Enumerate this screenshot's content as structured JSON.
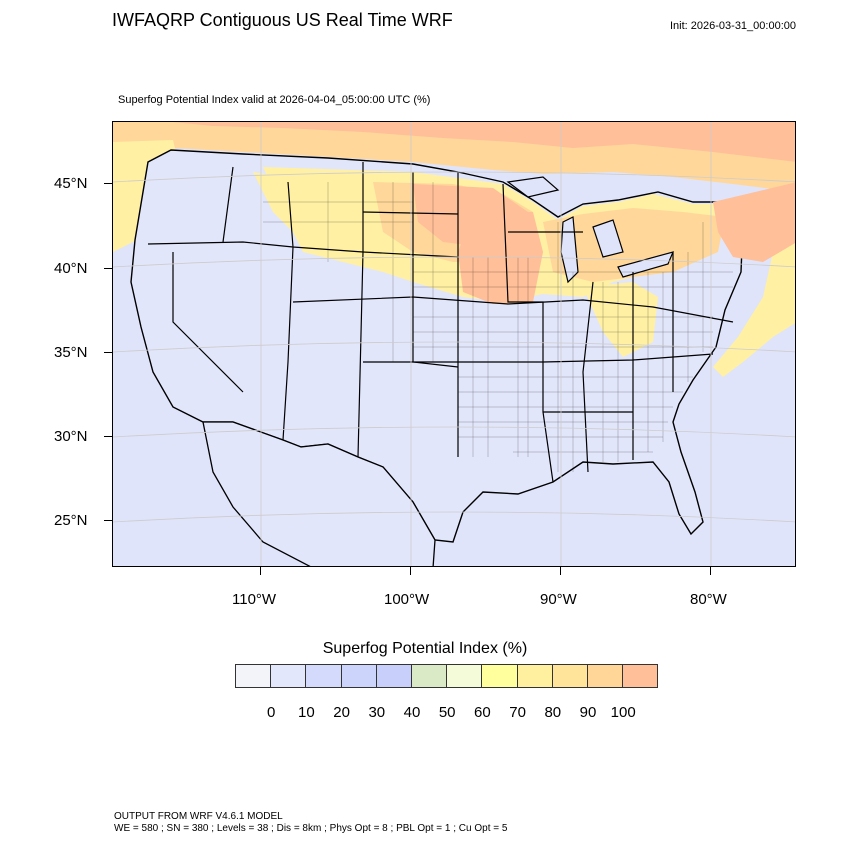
{
  "header": {
    "title": "IWFAQRP Contiguous US Real Time WRF",
    "init": "Init: 2026-03-31_00:00:00",
    "subtitle": "Superfog Potential Index valid at 2026-04-04_05:00:00 UTC   (%)"
  },
  "map": {
    "lat_labels": [
      "45°N",
      "40°N",
      "35°N",
      "30°N",
      "25°N"
    ],
    "lon_labels": [
      "110°W",
      "100°W",
      "90°W",
      "80°W"
    ],
    "land_color": "#e2e6fb",
    "ocean_color": "#dfe4fa",
    "high_color": "#ffbf99",
    "mid_color": "#ffd79a",
    "low_color": "#fff0a3"
  },
  "colorbar": {
    "title": "Superfog Potential Index  (%)",
    "colors": [
      "#f2f4f9",
      "#e3e7fb",
      "#d4dafb",
      "#cdd4fb",
      "#c8cffb",
      "#dbeac6",
      "#f4fbd9",
      "#ffff9e",
      "#fff0a0",
      "#ffe49a",
      "#ffd598",
      "#ffbf99"
    ],
    "labels": [
      "0",
      "10",
      "20",
      "30",
      "40",
      "50",
      "60",
      "70",
      "80",
      "90",
      "100"
    ]
  },
  "footer": {
    "line1": "OUTPUT FROM WRF V4.6.1 MODEL",
    "line2": "WE = 580 ; SN = 380 ; Levels = 38 ; Dis = 8km ; Phys Opt = 8 ; PBL Opt = 1 ; Cu Opt = 5"
  }
}
